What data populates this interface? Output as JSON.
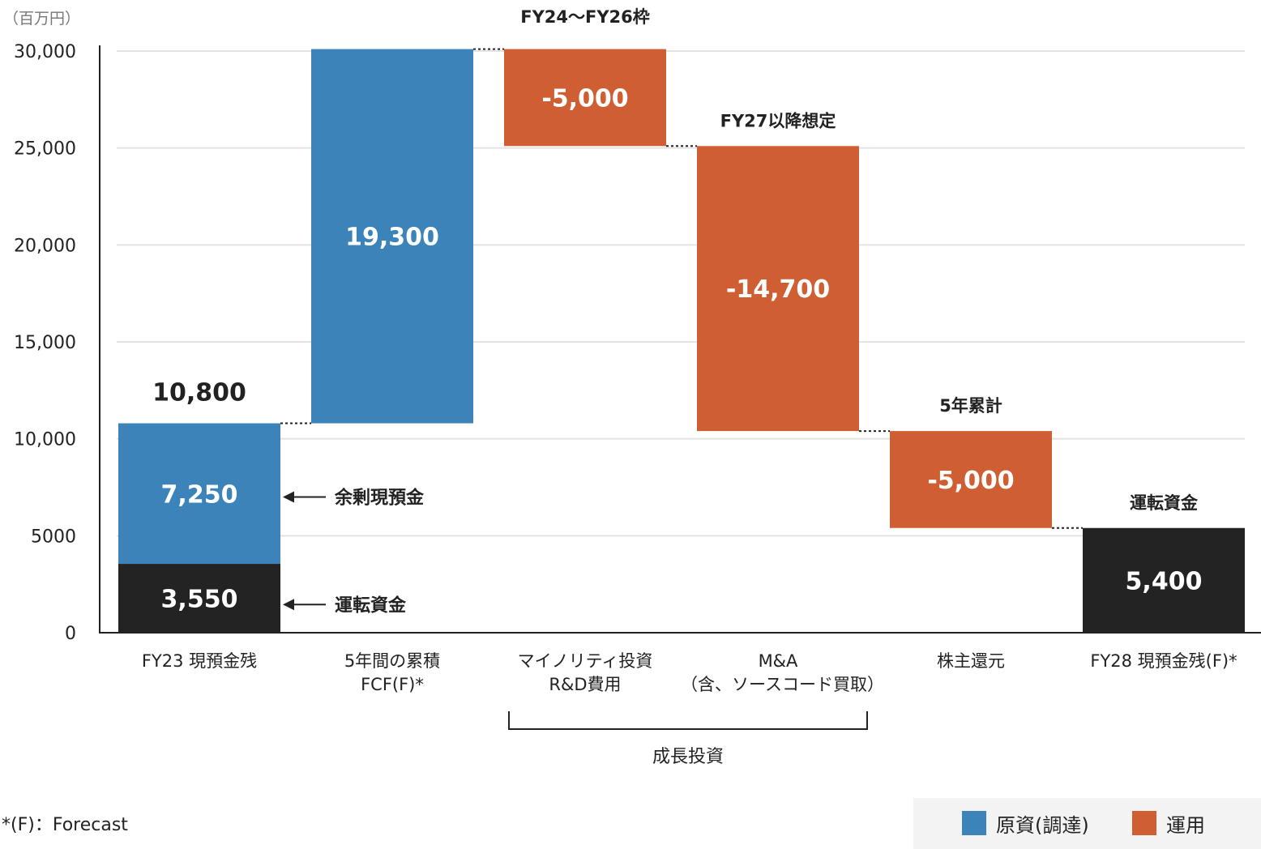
{
  "unit_label": "（百万円）",
  "footnote": "*(F)：Forecast",
  "legend": [
    {
      "label": "原資(調達)",
      "color": "#3c83ba"
    },
    {
      "label": "運用",
      "color": "#cf5f32"
    }
  ],
  "colors": {
    "funding": "#3c83ba",
    "usage": "#cf5f32",
    "working_capital": "#232323",
    "grid": "#e3e3e3",
    "axis": "#222222"
  },
  "chart_data": {
    "type": "bar",
    "subtype": "waterfall",
    "ylim": [
      0,
      30000
    ],
    "yticks": [
      "0",
      "5000",
      "10,000",
      "15,000",
      "20,000",
      "25,000",
      "30,000"
    ],
    "ytick_values": [
      0,
      5000,
      10000,
      15000,
      20000,
      25000,
      30000
    ],
    "grid": true,
    "legend_position": "bottom-right",
    "categories": [
      [
        "FY23 現預金残"
      ],
      [
        "5年間の累積",
        "FCF(F)*"
      ],
      [
        "マイノリティ投資",
        "R&D費用"
      ],
      [
        "M&A",
        "（含、ソースコード買取）"
      ],
      [
        "株主還元"
      ],
      [
        "FY28 現預金残(F)*"
      ]
    ],
    "bars": [
      {
        "category_index": 0,
        "segments": [
          {
            "from": 0,
            "to": 3550,
            "label": "3,550",
            "kind": "working_capital"
          },
          {
            "from": 3550,
            "to": 10800,
            "label": "7,250",
            "kind": "funding"
          }
        ],
        "total_label": "10,800"
      },
      {
        "category_index": 1,
        "segments": [
          {
            "from": 10800,
            "to": 30100,
            "label": "19,300",
            "kind": "funding"
          }
        ]
      },
      {
        "category_index": 2,
        "segments": [
          {
            "from": 25100,
            "to": 30100,
            "label": "-5,000",
            "kind": "usage"
          }
        ],
        "top_note": "FY24〜FY26枠"
      },
      {
        "category_index": 3,
        "segments": [
          {
            "from": 10400,
            "to": 25100,
            "label": "-14,700",
            "kind": "usage"
          }
        ],
        "top_note": "FY27以降想定"
      },
      {
        "category_index": 4,
        "segments": [
          {
            "from": 5400,
            "to": 10400,
            "label": "-5,000",
            "kind": "usage"
          }
        ],
        "top_note": "5年累計"
      },
      {
        "category_index": 5,
        "segments": [
          {
            "from": 0,
            "to": 5400,
            "label": "5,400",
            "kind": "working_capital"
          }
        ],
        "top_note": "運転資金"
      }
    ],
    "annotations": [
      {
        "text": "余剰現預金",
        "y": 7000
      },
      {
        "text": "運転資金",
        "y": 1450
      }
    ],
    "group": {
      "label": "成長投資",
      "from_index": 2,
      "to_index": 3
    }
  }
}
